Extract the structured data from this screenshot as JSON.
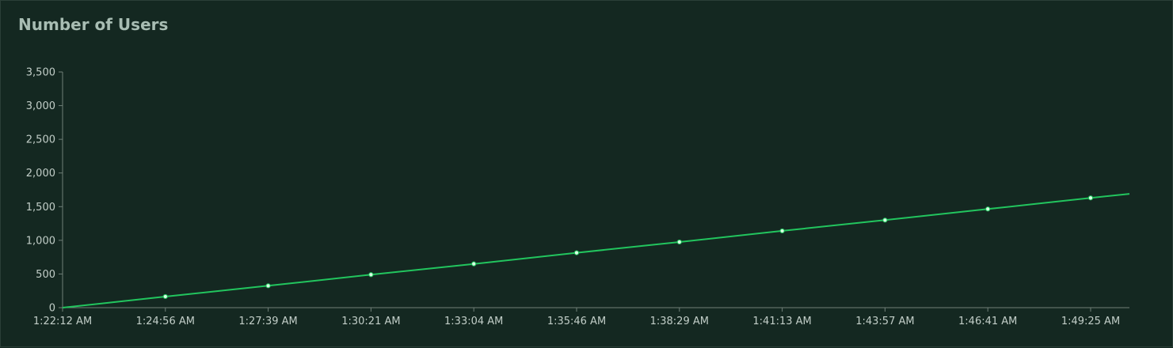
{
  "chart_data": {
    "type": "line",
    "title": "Number of Users",
    "xlabel": "",
    "ylabel": "",
    "x": [
      "1:22:12 AM",
      "1:24:56 AM",
      "1:27:39 AM",
      "1:30:21 AM",
      "1:33:04 AM",
      "1:35:46 AM",
      "1:38:29 AM",
      "1:41:13 AM",
      "1:43:57 AM",
      "1:46:41 AM",
      "1:49:25 AM"
    ],
    "y_ticks": [
      "0",
      "500",
      "1,000",
      "1,500",
      "2,000",
      "2,500",
      "3,000",
      "3,500"
    ],
    "ylim": [
      0,
      3500
    ],
    "series": [
      {
        "values": [
          0,
          165,
          325,
          490,
          650,
          815,
          975,
          1140,
          1300,
          1465,
          1630
        ],
        "end_value": 1690
      }
    ],
    "grid": false,
    "legend": "none",
    "colors": {
      "line": "#22c55e",
      "point": "#d9ffe4",
      "axis": "#6f7f78"
    }
  }
}
